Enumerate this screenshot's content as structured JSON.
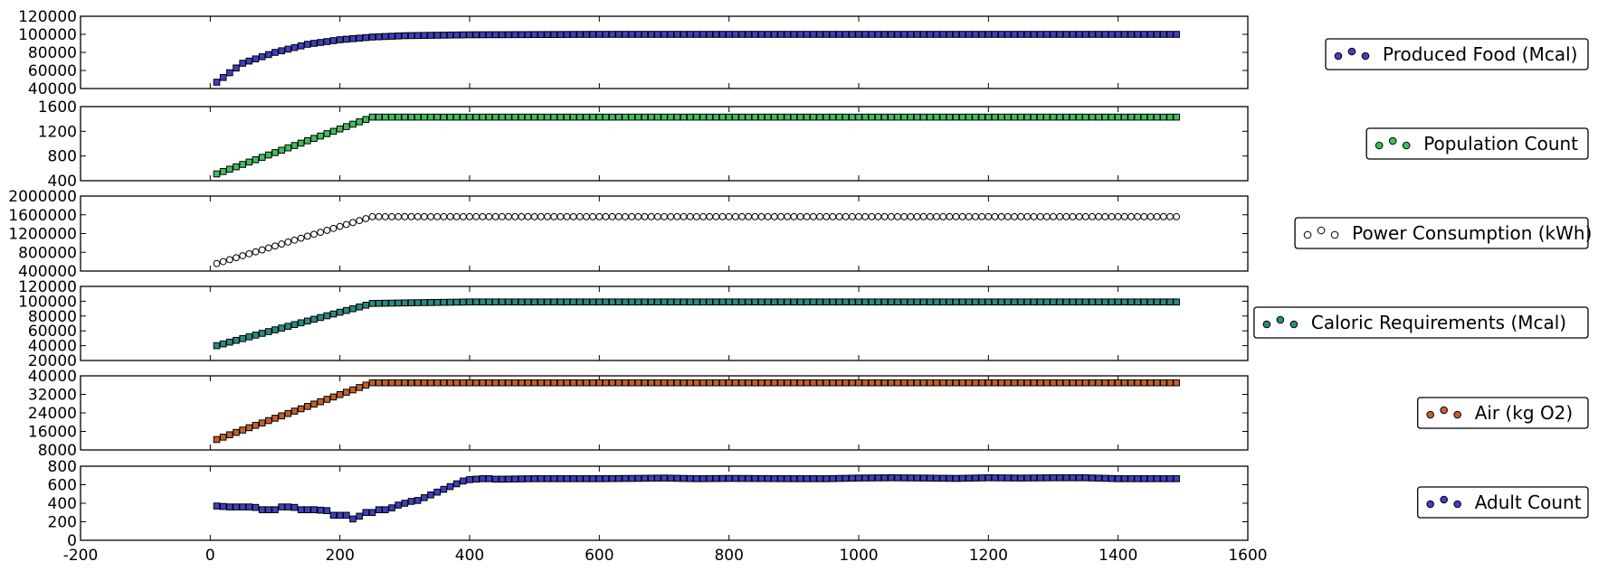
{
  "chart_data": [
    {
      "type": "scatter",
      "legend_label": "Produced Food (Mcal)",
      "color": "#3f3fbf",
      "marker": "square",
      "xlim": [
        -200,
        1600
      ],
      "ylim": [
        40000,
        120000
      ],
      "yticks": [
        "40000",
        "60000",
        "80000",
        "100000",
        "120000"
      ],
      "ytick_values": [
        40000,
        60000,
        80000,
        100000,
        120000
      ],
      "kind": "saturating",
      "points": [
        [
          10,
          47000
        ],
        [
          50,
          68000
        ],
        [
          100,
          80000
        ],
        [
          150,
          89000
        ],
        [
          200,
          94000
        ],
        [
          250,
          97000
        ],
        [
          300,
          98500
        ],
        [
          400,
          99500
        ],
        [
          600,
          100000
        ],
        [
          1490,
          100000
        ]
      ]
    },
    {
      "type": "scatter",
      "legend_label": "Population Count",
      "color": "#3fbf5f",
      "marker": "square",
      "xlim": [
        -200,
        1600
      ],
      "ylim": [
        400,
        1600
      ],
      "yticks": [
        "400",
        "800",
        "1200",
        "1600"
      ],
      "ytick_values": [
        400,
        800,
        1200,
        1600
      ],
      "kind": "linear-plateau",
      "points": [
        [
          10,
          510
        ],
        [
          250,
          1430
        ],
        [
          1490,
          1430
        ]
      ]
    },
    {
      "type": "scatter",
      "legend_label": "Power Consumption (kWh)",
      "color": "#ffffff",
      "marker": "circle",
      "xlim": [
        -200,
        1600
      ],
      "ylim": [
        400000,
        2000000
      ],
      "yticks": [
        "400000",
        "800000",
        "1200000",
        "1600000",
        "2000000"
      ],
      "ytick_values": [
        400000,
        800000,
        1200000,
        1600000,
        2000000
      ],
      "kind": "linear-plateau",
      "points": [
        [
          10,
          560000
        ],
        [
          250,
          1560000
        ],
        [
          1490,
          1560000
        ]
      ]
    },
    {
      "type": "scatter",
      "legend_label": "Caloric Requirements (Mcal)",
      "color": "#2a8a80",
      "marker": "square",
      "xlim": [
        -200,
        1600
      ],
      "ylim": [
        20000,
        120000
      ],
      "yticks": [
        "20000",
        "40000",
        "60000",
        "80000",
        "100000",
        "120000"
      ],
      "ytick_values": [
        20000,
        40000,
        60000,
        80000,
        100000,
        120000
      ],
      "kind": "linear-plateau",
      "points": [
        [
          10,
          40000
        ],
        [
          250,
          97000
        ],
        [
          320,
          98000
        ],
        [
          400,
          99000
        ],
        [
          1490,
          99000
        ]
      ]
    },
    {
      "type": "scatter",
      "legend_label": "Air (kg O2)",
      "color": "#c2622a",
      "marker": "square",
      "xlim": [
        -200,
        1600
      ],
      "ylim": [
        8000,
        40000
      ],
      "yticks": [
        "8000",
        "16000",
        "24000",
        "32000",
        "40000"
      ],
      "ytick_values": [
        8000,
        16000,
        24000,
        32000,
        40000
      ],
      "kind": "linear-plateau",
      "points": [
        [
          10,
          12500
        ],
        [
          250,
          37000
        ],
        [
          1490,
          37000
        ]
      ]
    },
    {
      "type": "scatter",
      "legend_label": "Adult Count",
      "color": "#3f3fbf",
      "marker": "square",
      "xlim": [
        -200,
        1600
      ],
      "ylim": [
        0,
        800
      ],
      "yticks": [
        "0",
        "200",
        "400",
        "600",
        "800"
      ],
      "ytick_values": [
        0,
        200,
        400,
        600,
        800
      ],
      "kind": "irregular",
      "points": [
        [
          10,
          370
        ],
        [
          20,
          365
        ],
        [
          30,
          360
        ],
        [
          40,
          360
        ],
        [
          50,
          360
        ],
        [
          60,
          360
        ],
        [
          70,
          355
        ],
        [
          80,
          330
        ],
        [
          90,
          330
        ],
        [
          100,
          330
        ],
        [
          110,
          360
        ],
        [
          120,
          360
        ],
        [
          130,
          355
        ],
        [
          140,
          330
        ],
        [
          150,
          330
        ],
        [
          160,
          330
        ],
        [
          170,
          325
        ],
        [
          180,
          320
        ],
        [
          190,
          270
        ],
        [
          200,
          270
        ],
        [
          210,
          270
        ],
        [
          220,
          230
        ],
        [
          230,
          260
        ],
        [
          240,
          300
        ],
        [
          250,
          300
        ],
        [
          260,
          330
        ],
        [
          270,
          330
        ],
        [
          280,
          350
        ],
        [
          290,
          380
        ],
        [
          300,
          400
        ],
        [
          310,
          420
        ],
        [
          320,
          430
        ],
        [
          330,
          460
        ],
        [
          340,
          490
        ],
        [
          350,
          520
        ],
        [
          360,
          550
        ],
        [
          370,
          580
        ],
        [
          380,
          610
        ],
        [
          390,
          640
        ],
        [
          400,
          655
        ],
        [
          410,
          660
        ],
        [
          420,
          665
        ],
        [
          430,
          665
        ],
        [
          440,
          660
        ],
        [
          450,
          660
        ],
        [
          500,
          665
        ],
        [
          600,
          665
        ],
        [
          650,
          668
        ],
        [
          700,
          672
        ],
        [
          750,
          665
        ],
        [
          800,
          668
        ],
        [
          900,
          665
        ],
        [
          950,
          665
        ],
        [
          1000,
          672
        ],
        [
          1050,
          675
        ],
        [
          1100,
          672
        ],
        [
          1150,
          668
        ],
        [
          1200,
          675
        ],
        [
          1250,
          672
        ],
        [
          1300,
          675
        ],
        [
          1350,
          675
        ],
        [
          1400,
          665
        ],
        [
          1450,
          665
        ],
        [
          1490,
          665
        ]
      ]
    }
  ],
  "x_axis": {
    "ticks": [
      "-200",
      "0",
      "200",
      "400",
      "600",
      "800",
      "1000",
      "1200",
      "1400",
      "1600"
    ],
    "tick_values": [
      -200,
      0,
      200,
      400,
      600,
      800,
      1000,
      1200,
      1400,
      1600
    ]
  }
}
